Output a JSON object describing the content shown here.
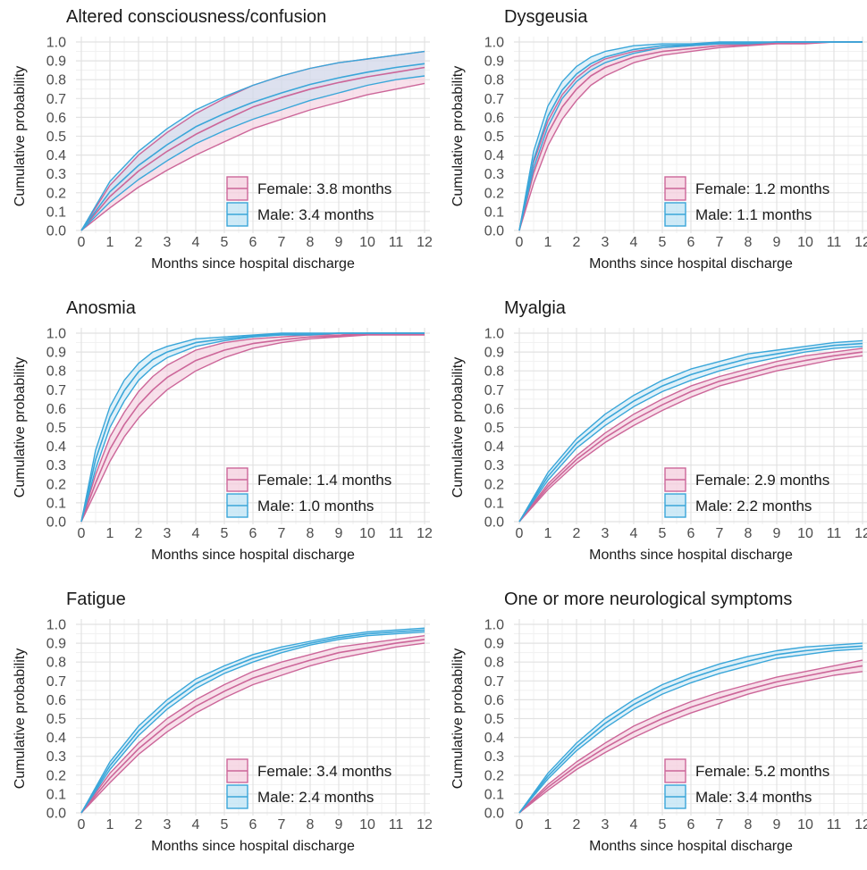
{
  "colors": {
    "female": "#cc6699",
    "female_fill": "#f4cddd",
    "male": "#3aa6d9",
    "male_fill": "#bde3f4",
    "overlap_fill": "#d9d3ec",
    "grid_major": "#e2e2e2",
    "grid_minor": "#f1f1f1",
    "text": "#1a1a1a",
    "tick": "#4d4d4d"
  },
  "chart_data": [
    {
      "type": "line",
      "title": "Altered consciousness/confusion",
      "xlabel": "Months since hospital discharge",
      "ylabel": "Cumulative probability",
      "xlim": [
        0,
        12
      ],
      "ylim": [
        0,
        1
      ],
      "x_ticks": [
        0,
        1,
        2,
        3,
        4,
        5,
        6,
        7,
        8,
        9,
        10,
        11,
        12
      ],
      "y_ticks": [
        "0.0",
        "0.1",
        "0.2",
        "0.3",
        "0.4",
        "0.5",
        "0.6",
        "0.7",
        "0.8",
        "0.9",
        "1.0"
      ],
      "grid": true,
      "legend_position": "bottom-right",
      "x": [
        0,
        1,
        2,
        3,
        4,
        5,
        6,
        7,
        8,
        9,
        10,
        11,
        12
      ],
      "series": [
        {
          "name": "Female: 3.8 months",
          "lower": [
            0,
            0.12,
            0.23,
            0.32,
            0.4,
            0.47,
            0.54,
            0.59,
            0.64,
            0.68,
            0.72,
            0.75,
            0.78
          ],
          "upper": [
            0,
            0.24,
            0.4,
            0.52,
            0.62,
            0.7,
            0.77,
            0.82,
            0.86,
            0.89,
            0.91,
            0.93,
            0.95
          ]
        },
        {
          "name": "Male: 3.4 months",
          "lower": [
            0,
            0.15,
            0.27,
            0.37,
            0.46,
            0.53,
            0.59,
            0.64,
            0.69,
            0.73,
            0.77,
            0.8,
            0.82
          ],
          "upper": [
            0,
            0.26,
            0.42,
            0.54,
            0.64,
            0.71,
            0.77,
            0.82,
            0.86,
            0.89,
            0.91,
            0.93,
            0.95
          ]
        }
      ]
    },
    {
      "type": "line",
      "title": "Dysgeusia",
      "xlabel": "Months since hospital discharge",
      "ylabel": "Cumulative probability",
      "xlim": [
        0,
        12
      ],
      "ylim": [
        0,
        1
      ],
      "x_ticks": [
        0,
        1,
        2,
        3,
        4,
        5,
        6,
        7,
        8,
        9,
        10,
        11,
        12
      ],
      "y_ticks": [
        "0.0",
        "0.1",
        "0.2",
        "0.3",
        "0.4",
        "0.5",
        "0.6",
        "0.7",
        "0.8",
        "0.9",
        "1.0"
      ],
      "grid": true,
      "legend_position": "bottom-right",
      "x": [
        0,
        0.5,
        1,
        1.5,
        2,
        2.5,
        3,
        4,
        5,
        6,
        7,
        8,
        9,
        10,
        11,
        12
      ],
      "series": [
        {
          "name": "Female: 1.2 months",
          "lower": [
            0,
            0.25,
            0.45,
            0.59,
            0.69,
            0.77,
            0.82,
            0.89,
            0.93,
            0.95,
            0.97,
            0.98,
            0.99,
            0.99,
            1.0,
            1.0
          ],
          "upper": [
            0,
            0.36,
            0.58,
            0.72,
            0.81,
            0.87,
            0.91,
            0.95,
            0.97,
            0.98,
            0.99,
            0.99,
            1.0,
            1.0,
            1.0,
            1.0
          ]
        },
        {
          "name": "Male: 1.1 months",
          "lower": [
            0,
            0.33,
            0.55,
            0.7,
            0.79,
            0.85,
            0.89,
            0.94,
            0.97,
            0.98,
            0.99,
            0.99,
            1.0,
            1.0,
            1.0,
            1.0
          ],
          "upper": [
            0,
            0.42,
            0.66,
            0.79,
            0.87,
            0.92,
            0.95,
            0.98,
            0.99,
            0.99,
            1.0,
            1.0,
            1.0,
            1.0,
            1.0,
            1.0
          ]
        }
      ]
    },
    {
      "type": "line",
      "title": "Anosmia",
      "xlabel": "Months since hospital discharge",
      "ylabel": "Cumulative probability",
      "xlim": [
        0,
        12
      ],
      "ylim": [
        0,
        1
      ],
      "x_ticks": [
        0,
        1,
        2,
        3,
        4,
        5,
        6,
        7,
        8,
        9,
        10,
        11,
        12
      ],
      "y_ticks": [
        "0.0",
        "0.1",
        "0.2",
        "0.3",
        "0.4",
        "0.5",
        "0.6",
        "0.7",
        "0.8",
        "0.9",
        "1.0"
      ],
      "grid": true,
      "legend_position": "bottom-right",
      "x": [
        0,
        0.5,
        1,
        1.5,
        2,
        2.5,
        3,
        4,
        5,
        6,
        7,
        8,
        9,
        10,
        11,
        12
      ],
      "series": [
        {
          "name": "Female: 1.4 months",
          "lower": [
            0,
            0.16,
            0.32,
            0.45,
            0.55,
            0.63,
            0.7,
            0.8,
            0.87,
            0.92,
            0.95,
            0.97,
            0.98,
            0.99,
            0.99,
            0.99
          ],
          "upper": [
            0,
            0.25,
            0.45,
            0.58,
            0.69,
            0.77,
            0.83,
            0.91,
            0.95,
            0.97,
            0.98,
            0.99,
            0.99,
            1.0,
            1.0,
            1.0
          ]
        },
        {
          "name": "Male: 1.0 months",
          "lower": [
            0,
            0.28,
            0.5,
            0.64,
            0.75,
            0.82,
            0.87,
            0.93,
            0.96,
            0.98,
            0.99,
            0.99,
            1.0,
            1.0,
            1.0,
            1.0
          ],
          "upper": [
            0,
            0.38,
            0.61,
            0.75,
            0.84,
            0.9,
            0.93,
            0.97,
            0.98,
            0.99,
            1.0,
            1.0,
            1.0,
            1.0,
            1.0,
            1.0
          ]
        }
      ]
    },
    {
      "type": "line",
      "title": "Myalgia",
      "xlabel": "Months since hospital discharge",
      "ylabel": "Cumulative probability",
      "xlim": [
        0,
        12
      ],
      "ylim": [
        0,
        1
      ],
      "x_ticks": [
        0,
        1,
        2,
        3,
        4,
        5,
        6,
        7,
        8,
        9,
        10,
        11,
        12
      ],
      "y_ticks": [
        "0.0",
        "0.1",
        "0.2",
        "0.3",
        "0.4",
        "0.5",
        "0.6",
        "0.7",
        "0.8",
        "0.9",
        "1.0"
      ],
      "grid": true,
      "legend_position": "bottom-right",
      "x": [
        0,
        1,
        2,
        3,
        4,
        5,
        6,
        7,
        8,
        9,
        10,
        11,
        12
      ],
      "series": [
        {
          "name": "Female: 2.9 months",
          "lower": [
            0,
            0.17,
            0.31,
            0.42,
            0.51,
            0.59,
            0.66,
            0.72,
            0.76,
            0.8,
            0.83,
            0.86,
            0.88
          ],
          "upper": [
            0,
            0.2,
            0.35,
            0.47,
            0.57,
            0.65,
            0.72,
            0.77,
            0.81,
            0.85,
            0.88,
            0.9,
            0.92
          ]
        },
        {
          "name": "Male: 2.2 months",
          "lower": [
            0,
            0.22,
            0.39,
            0.51,
            0.61,
            0.69,
            0.75,
            0.8,
            0.84,
            0.87,
            0.9,
            0.92,
            0.93
          ],
          "upper": [
            0,
            0.26,
            0.44,
            0.57,
            0.67,
            0.75,
            0.81,
            0.85,
            0.89,
            0.91,
            0.93,
            0.95,
            0.96
          ]
        }
      ]
    },
    {
      "type": "line",
      "title": "Fatigue",
      "xlabel": "Months since hospital discharge",
      "ylabel": "Cumulative probability",
      "xlim": [
        0,
        12
      ],
      "ylim": [
        0,
        1
      ],
      "x_ticks": [
        0,
        1,
        2,
        3,
        4,
        5,
        6,
        7,
        8,
        9,
        10,
        11,
        12
      ],
      "y_ticks": [
        "0.0",
        "0.1",
        "0.2",
        "0.3",
        "0.4",
        "0.5",
        "0.6",
        "0.7",
        "0.8",
        "0.9",
        "1.0"
      ],
      "grid": true,
      "legend_position": "bottom-right",
      "x": [
        0,
        1,
        2,
        3,
        4,
        5,
        6,
        7,
        8,
        9,
        10,
        11,
        12
      ],
      "series": [
        {
          "name": "Female: 3.4 months",
          "lower": [
            0,
            0.16,
            0.31,
            0.43,
            0.53,
            0.61,
            0.68,
            0.73,
            0.78,
            0.82,
            0.85,
            0.88,
            0.9
          ],
          "upper": [
            0,
            0.21,
            0.37,
            0.5,
            0.6,
            0.68,
            0.75,
            0.8,
            0.84,
            0.88,
            0.9,
            0.92,
            0.94
          ]
        },
        {
          "name": "Male: 2.4 months",
          "lower": [
            0,
            0.23,
            0.41,
            0.55,
            0.66,
            0.74,
            0.8,
            0.85,
            0.89,
            0.92,
            0.94,
            0.95,
            0.96
          ],
          "upper": [
            0,
            0.27,
            0.46,
            0.6,
            0.71,
            0.78,
            0.84,
            0.88,
            0.91,
            0.94,
            0.96,
            0.97,
            0.98
          ]
        }
      ]
    },
    {
      "type": "line",
      "title": "One or more neurological symptoms",
      "xlabel": "Months since hospital discharge",
      "ylabel": "Cumulative probability",
      "xlim": [
        0,
        12
      ],
      "ylim": [
        0,
        1
      ],
      "x_ticks": [
        0,
        1,
        2,
        3,
        4,
        5,
        6,
        7,
        8,
        9,
        10,
        11,
        12
      ],
      "y_ticks": [
        "0.0",
        "0.1",
        "0.2",
        "0.3",
        "0.4",
        "0.5",
        "0.6",
        "0.7",
        "0.8",
        "0.9",
        "1.0"
      ],
      "grid": true,
      "legend_position": "bottom-right",
      "x": [
        0,
        1,
        2,
        3,
        4,
        5,
        6,
        7,
        8,
        9,
        10,
        11,
        12
      ],
      "series": [
        {
          "name": "Female: 5.2 months",
          "lower": [
            0,
            0.12,
            0.23,
            0.32,
            0.4,
            0.47,
            0.53,
            0.58,
            0.63,
            0.67,
            0.7,
            0.73,
            0.75
          ],
          "upper": [
            0,
            0.15,
            0.27,
            0.37,
            0.46,
            0.53,
            0.59,
            0.64,
            0.68,
            0.72,
            0.75,
            0.78,
            0.81
          ]
        },
        {
          "name": "Male: 3.4 months",
          "lower": [
            0,
            0.18,
            0.33,
            0.45,
            0.55,
            0.63,
            0.69,
            0.74,
            0.78,
            0.82,
            0.84,
            0.86,
            0.87
          ],
          "upper": [
            0,
            0.21,
            0.37,
            0.5,
            0.6,
            0.68,
            0.74,
            0.79,
            0.83,
            0.86,
            0.88,
            0.89,
            0.9
          ]
        }
      ]
    }
  ]
}
